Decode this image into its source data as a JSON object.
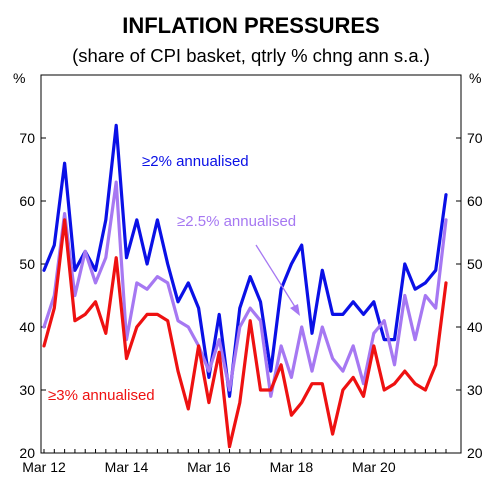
{
  "chart_data": {
    "type": "line",
    "title": "INFLATION PRESSURES",
    "subtitle": "(share of CPI basket, qtrly % chng ann s.a.)",
    "y_unit_left": "%",
    "y_unit_right": "%",
    "ylim": [
      20,
      80
    ],
    "yticks": [
      20,
      30,
      40,
      50,
      60,
      70
    ],
    "x_tick_labels": [
      "Mar 12",
      "Mar 14",
      "Mar 16",
      "Mar 18",
      "Mar 20"
    ],
    "grid": false,
    "colors": {
      "s2": "#0a10e6",
      "s25": "#a678f2",
      "s3": "#ee1111",
      "arrow": "#a678f2"
    },
    "x": [
      "Mar 12",
      "Jun 12",
      "Sep 12",
      "Dec 12",
      "Mar 13",
      "Jun 13",
      "Sep 13",
      "Dec 13",
      "Mar 14",
      "Jun 14",
      "Sep 14",
      "Dec 14",
      "Mar 15",
      "Jun 15",
      "Sep 15",
      "Dec 15",
      "Mar 16",
      "Jun 16",
      "Sep 16",
      "Dec 16",
      "Mar 17",
      "Jun 17",
      "Sep 17",
      "Dec 17",
      "Mar 18",
      "Jun 18",
      "Sep 18",
      "Dec 18",
      "Mar 19",
      "Jun 19",
      "Sep 19",
      "Dec 19",
      "Mar 20",
      "Jun 20",
      "Sep 20",
      "Dec 20",
      "Mar 21",
      "Jun 21",
      "Sep 21",
      "Dec 21"
    ],
    "series": [
      {
        "name": "≥2% annualised",
        "key": "s2",
        "values": [
          49,
          53,
          66,
          49,
          52,
          49,
          57,
          72,
          51,
          57,
          50,
          57,
          50,
          44,
          47,
          43,
          32,
          42,
          29,
          43,
          48,
          44,
          33,
          46,
          50,
          53,
          39,
          49,
          42,
          42,
          44,
          42,
          44,
          38,
          38,
          50,
          46,
          47,
          49,
          61
        ]
      },
      {
        "name": "≥2.5% annualised",
        "key": "s25",
        "values": [
          40,
          45,
          58,
          45,
          52,
          47,
          51,
          63,
          38,
          47,
          46,
          48,
          47,
          41,
          40,
          37,
          33,
          38,
          30,
          40,
          43,
          41,
          29,
          37,
          32,
          40,
          33,
          40,
          35,
          33,
          37,
          31,
          39,
          41,
          34,
          45,
          38,
          45,
          43,
          57
        ]
      },
      {
        "name": "≥3% annualised",
        "key": "s3",
        "values": [
          37,
          43,
          57,
          41,
          42,
          44,
          39,
          51,
          35,
          40,
          42,
          42,
          41,
          33,
          27,
          37,
          28,
          36,
          21,
          28,
          41,
          30,
          30,
          34,
          26,
          28,
          31,
          31,
          23,
          30,
          32,
          29,
          37,
          30,
          31,
          33,
          31,
          30,
          34,
          47
        ]
      }
    ],
    "annotations": [
      {
        "text": "≥2% annualised",
        "series": "s2"
      },
      {
        "text": "≥2.5% annualised",
        "series": "s25"
      },
      {
        "text": "≥3% annualised",
        "series": "s3"
      }
    ]
  }
}
